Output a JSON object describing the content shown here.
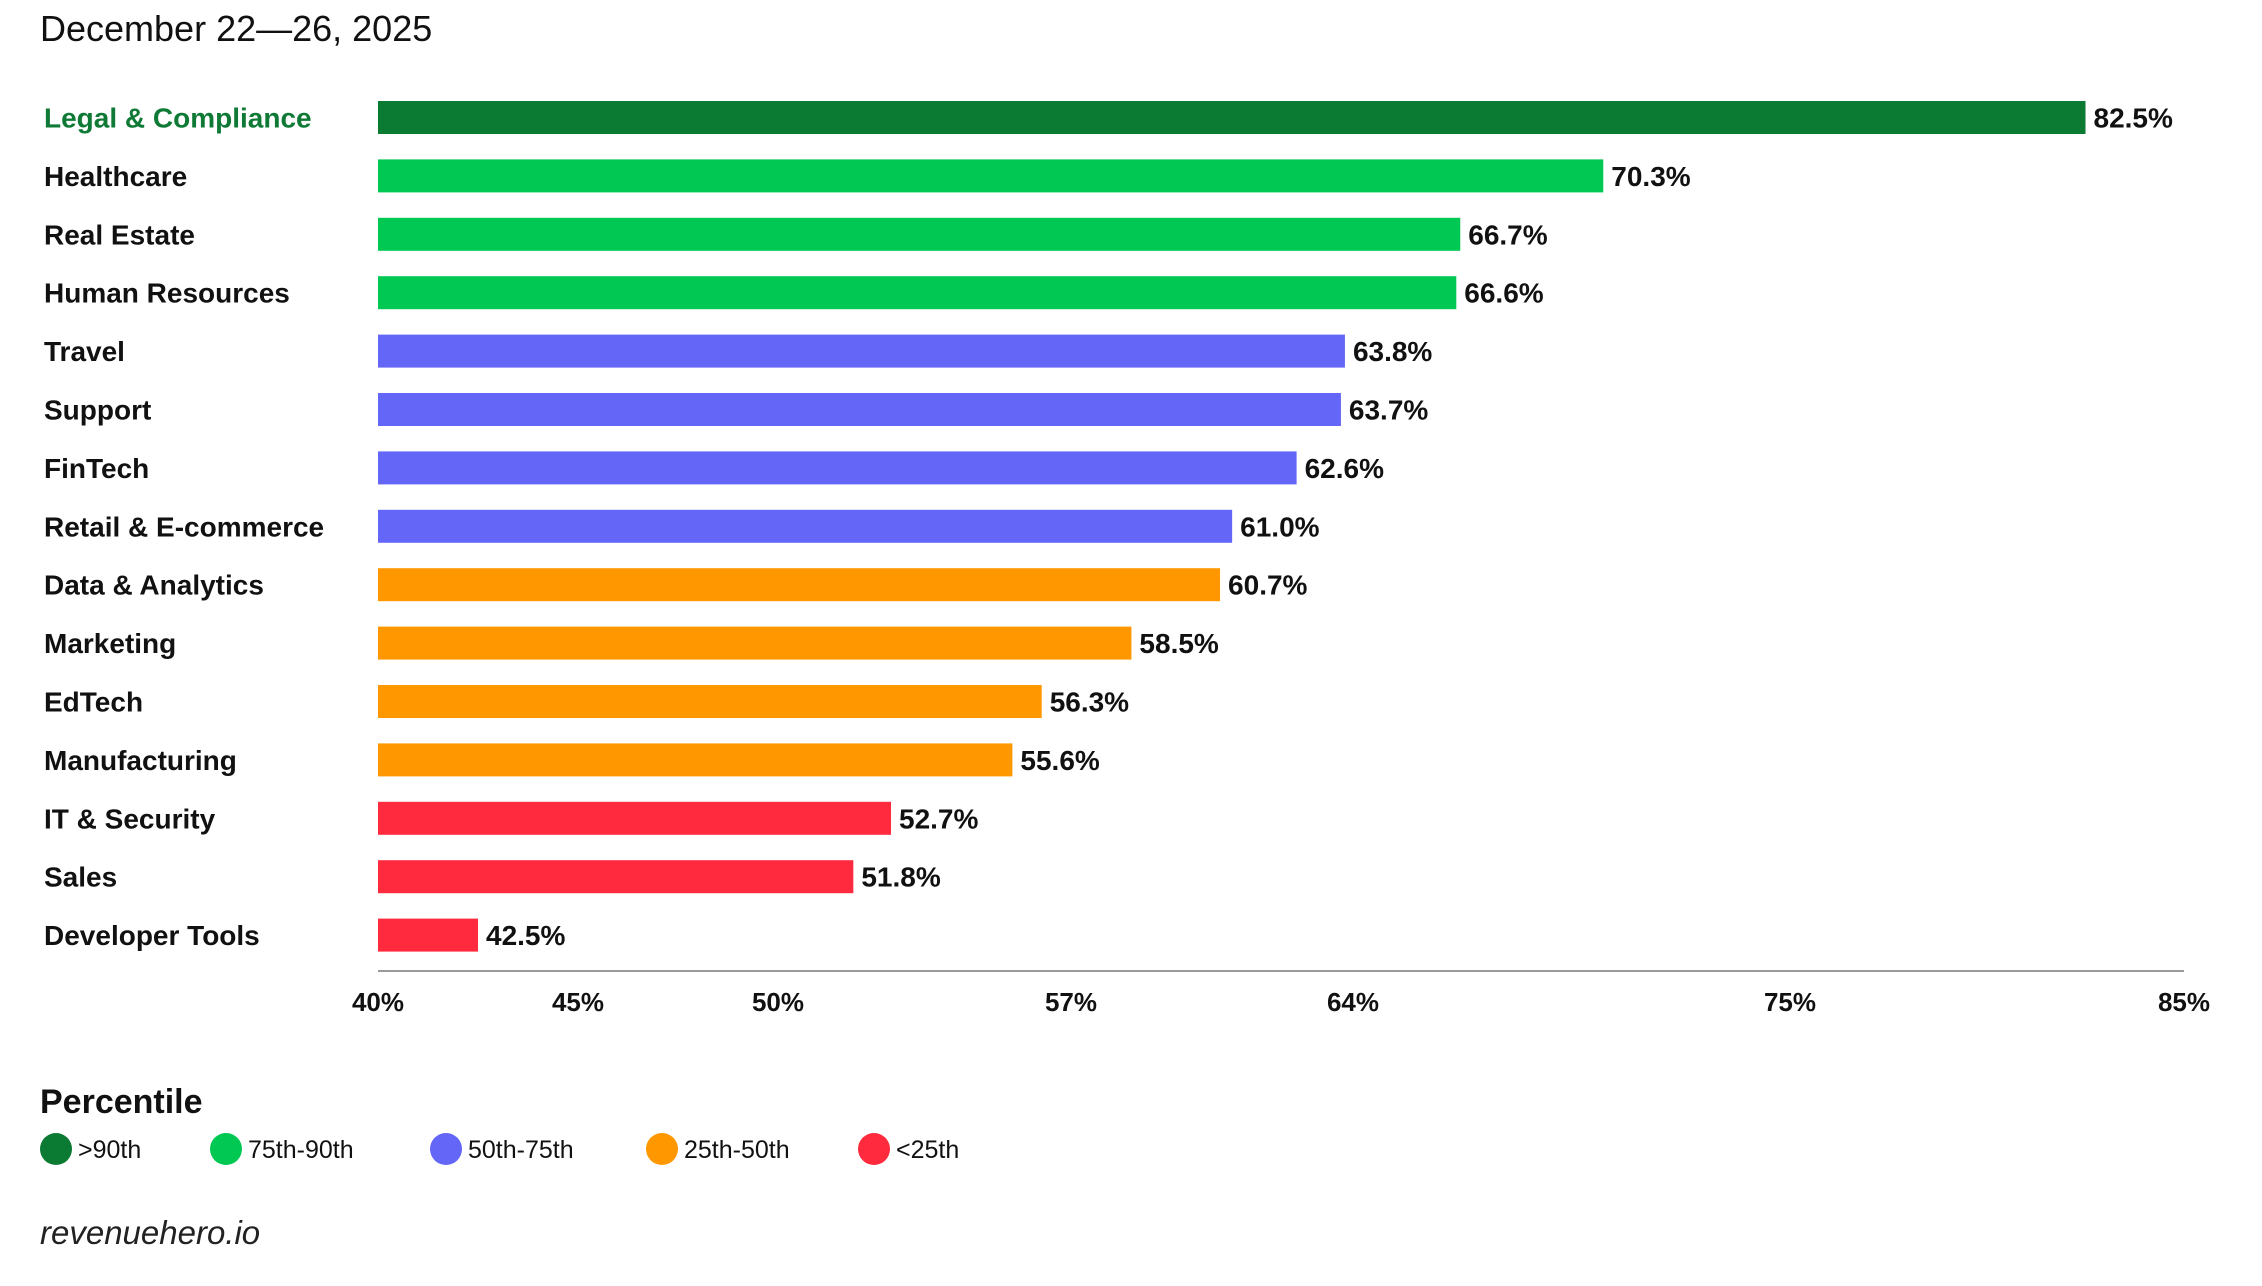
{
  "header": {
    "subtitle": "December 22—26, 2025"
  },
  "chart_data": {
    "type": "bar",
    "orientation": "horizontal",
    "title": "",
    "xlabel": "",
    "ylabel": "",
    "xlim": [
      40,
      85
    ],
    "x_ticks": [
      40,
      45,
      50,
      57,
      64,
      75,
      85
    ],
    "x_tick_labels": [
      "40%",
      "45%",
      "50%",
      "57%",
      "64%",
      "75%",
      "85%"
    ],
    "grid": false,
    "value_suffix": "%",
    "categories": [
      "Legal & Compliance",
      "Healthcare",
      "Real Estate",
      "Human Resources",
      "Travel",
      "Support",
      "FinTech",
      "Retail & E-commerce",
      "Data & Analytics",
      "Marketing",
      "EdTech",
      "Manufacturing",
      "IT & Security",
      "Sales",
      "Developer Tools"
    ],
    "values": [
      82.5,
      70.3,
      66.7,
      66.6,
      63.8,
      63.7,
      62.6,
      61.0,
      60.7,
      58.5,
      56.3,
      55.6,
      52.7,
      51.8,
      42.5
    ],
    "value_labels": [
      "82.5%",
      "70.3%",
      "66.7%",
      "66.6%",
      "63.8%",
      "63.7%",
      "62.6%",
      "61.0%",
      "60.7%",
      "58.5%",
      "56.3%",
      "55.6%",
      "52.7%",
      "51.8%",
      "42.5%"
    ],
    "bar_groups": [
      0,
      1,
      1,
      1,
      2,
      2,
      2,
      2,
      3,
      3,
      3,
      3,
      4,
      4,
      4
    ],
    "legend": {
      "title": "Percentile",
      "placement": "bottom-left",
      "items": [
        {
          "label": ">90th",
          "color": "#0b7a33"
        },
        {
          "label": "75th-90th",
          "color": "#00c853"
        },
        {
          "label": "50th-75th",
          "color": "#6366f6"
        },
        {
          "label": "25th-50th",
          "color": "#ff9800"
        },
        {
          "label": "<25th",
          "color": "#ff2a3d"
        }
      ]
    }
  },
  "footer": {
    "source": "revenuehero.io"
  }
}
